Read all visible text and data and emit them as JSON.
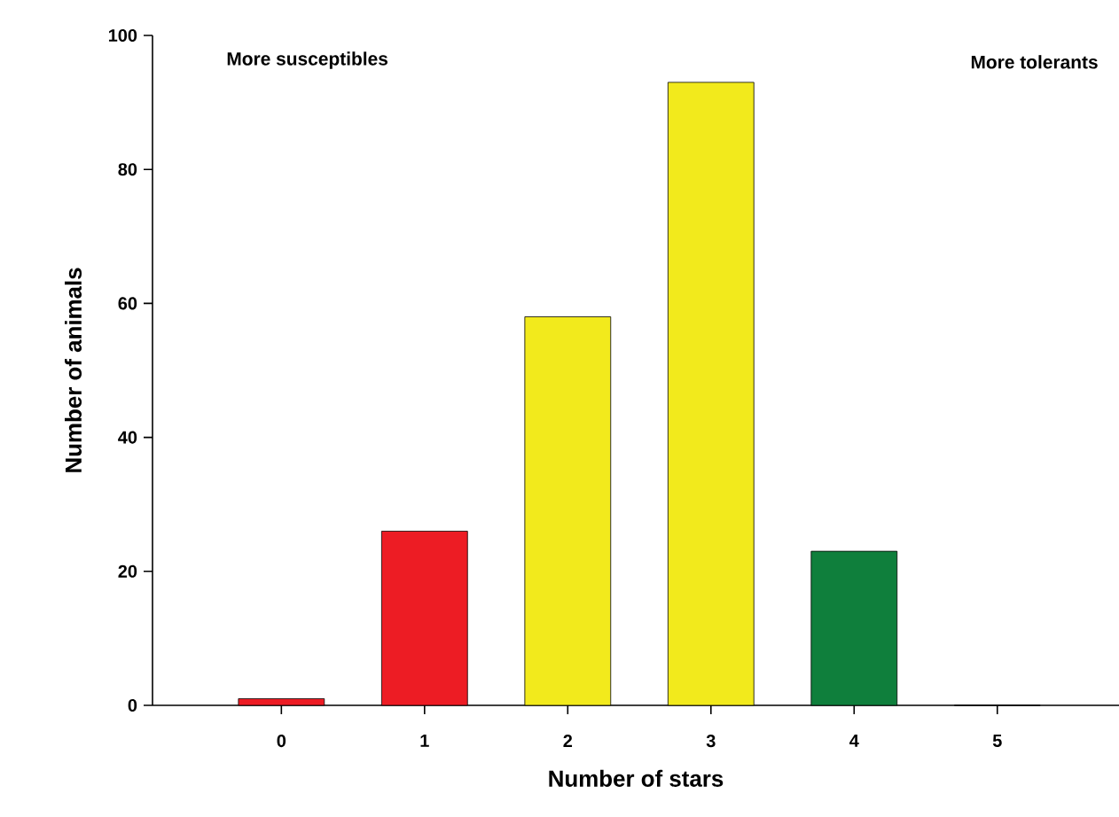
{
  "chart_data": {
    "type": "bar",
    "xlabel": "Number of stars",
    "ylabel": "Number of animals",
    "categories": [
      "0",
      "1",
      "2",
      "3",
      "4",
      "5"
    ],
    "values": [
      1,
      26,
      58,
      93,
      23,
      0
    ],
    "colors": [
      "#ed1c24",
      "#ed1c24",
      "#f2ea1c",
      "#f2ea1c",
      "#0f7f3c",
      "#0f7f3c"
    ],
    "ylim": [
      0,
      100
    ],
    "yticks": [
      0,
      20,
      40,
      60,
      80,
      100
    ],
    "annotations": [
      "More susceptibles",
      "More tolerants"
    ],
    "grid": false
  }
}
